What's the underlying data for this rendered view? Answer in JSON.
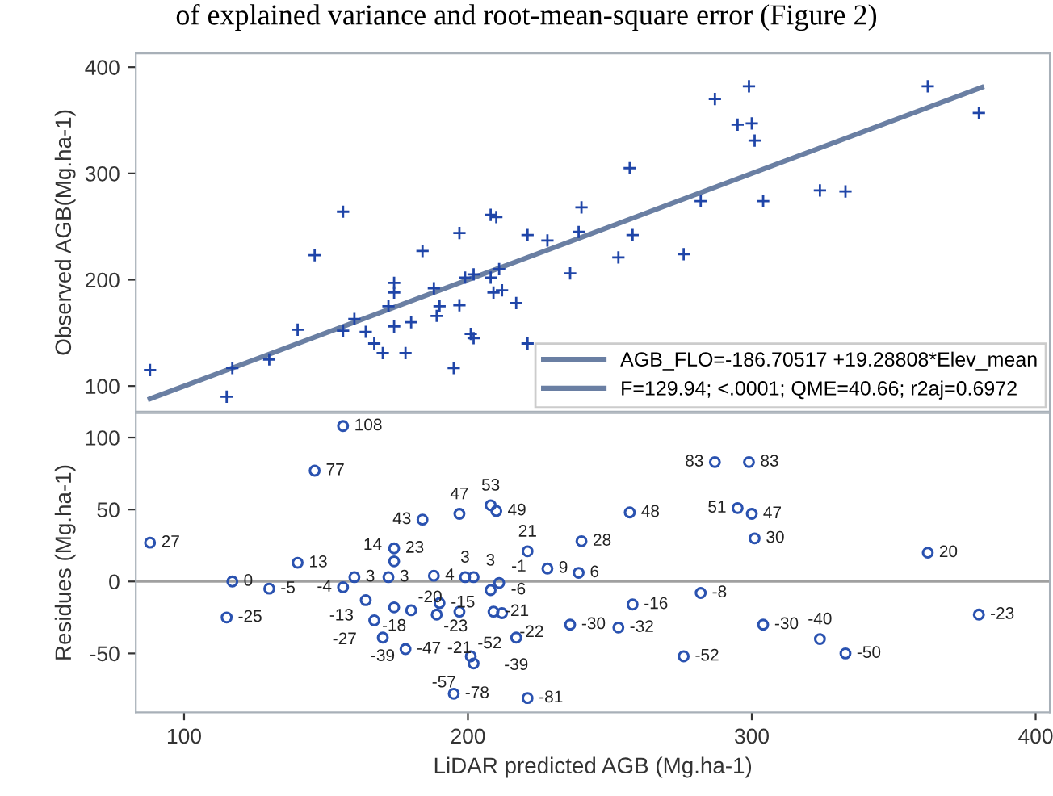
{
  "chart_data": [
    {
      "type": "scatter",
      "title": "of explained variance and root-mean-square error (Figure 2)",
      "ylabel": "Observed AGB(Mg.ha-1)",
      "xlim": [
        83,
        405
      ],
      "ylim": [
        76,
        413
      ],
      "yticks": [
        100,
        200,
        300,
        400
      ],
      "tick_labels": "y",
      "grid": false,
      "legend": "bottom right",
      "annotations": [
        "F=129.94; <.0001; QME=40.66; r2aj=0.6972"
      ],
      "series": [
        {
          "marker": "cross",
          "color": "#1f45a8",
          "x": [
            88,
            117,
            115,
            130,
            140,
            146,
            156,
            156,
            160,
            164,
            167,
            170,
            172,
            174,
            174,
            174,
            178,
            180,
            184,
            188,
            189,
            190,
            197,
            195,
            197,
            199,
            202,
            201,
            202,
            208,
            208,
            210,
            211,
            209,
            212,
            217,
            221,
            221,
            228,
            236,
            239,
            240,
            253,
            257,
            258,
            276,
            282,
            287,
            295,
            299,
            300,
            301,
            304,
            324,
            333,
            362,
            380
          ],
          "values": [
            115,
            117,
            90,
            125,
            153,
            223,
            264,
            152,
            163,
            151,
            140,
            131,
            175,
            197,
            188,
            156,
            131,
            160,
            227,
            192,
            166,
            175,
            244,
            117,
            176,
            202,
            205,
            149,
            145,
            202,
            261,
            259,
            210,
            188,
            190,
            178,
            242,
            140,
            237,
            206,
            245,
            268,
            221,
            305,
            242,
            224,
            274,
            370,
            346,
            382,
            347,
            331,
            274,
            284,
            283,
            382,
            357
          ]
        },
        {
          "type": "line",
          "marker": "none",
          "name": "AGB_FLO=-186.70517 +19.28808*Elev_mean",
          "color": "#6a7fa3",
          "x": [
            88,
            381
          ],
          "values": [
            88,
            381
          ]
        }
      ]
    },
    {
      "type": "scatter",
      "xlabel": "LiDAR predicted AGB (Mg.ha-1)",
      "ylabel": "Residues (Mg.ha-1)",
      "xlim": [
        83,
        405
      ],
      "xticks": [
        100,
        200,
        300,
        400
      ],
      "ylim": [
        -91,
        117
      ],
      "yticks": [
        -50,
        0,
        50,
        100
      ],
      "grid": false,
      "data_labels": true,
      "ref_lines": [
        {
          "axis": "y",
          "value": 0,
          "color": "#a0a0a0"
        }
      ],
      "series": [
        {
          "marker": "circle",
          "color": "#2a52b0",
          "x": [
            88,
            117,
            115,
            130,
            140,
            146,
            156,
            156,
            160,
            164,
            167,
            170,
            172,
            174,
            174,
            174,
            178,
            180,
            184,
            188,
            189,
            190,
            197,
            195,
            197,
            199,
            202,
            201,
            202,
            208,
            208,
            210,
            211,
            209,
            212,
            217,
            221,
            221,
            228,
            236,
            239,
            240,
            253,
            257,
            258,
            276,
            282,
            287,
            295,
            299,
            300,
            301,
            304,
            324,
            333,
            362,
            380
          ],
          "values": [
            27,
            0,
            -25,
            -5,
            13,
            77,
            108,
            -4,
            3,
            -13,
            -27,
            -39,
            3,
            23,
            14,
            -18,
            -47,
            -20,
            43,
            4,
            -23,
            -15,
            47,
            -78,
            -21,
            3,
            3,
            -52,
            -57,
            -6,
            53,
            49,
            -1,
            -21,
            -22,
            -39,
            21,
            -81,
            9,
            -30,
            6,
            28,
            -32,
            48,
            -16,
            -52,
            -8,
            83,
            51,
            83,
            47,
            30,
            -30,
            -40,
            -50,
            20,
            -23
          ]
        }
      ]
    }
  ]
}
